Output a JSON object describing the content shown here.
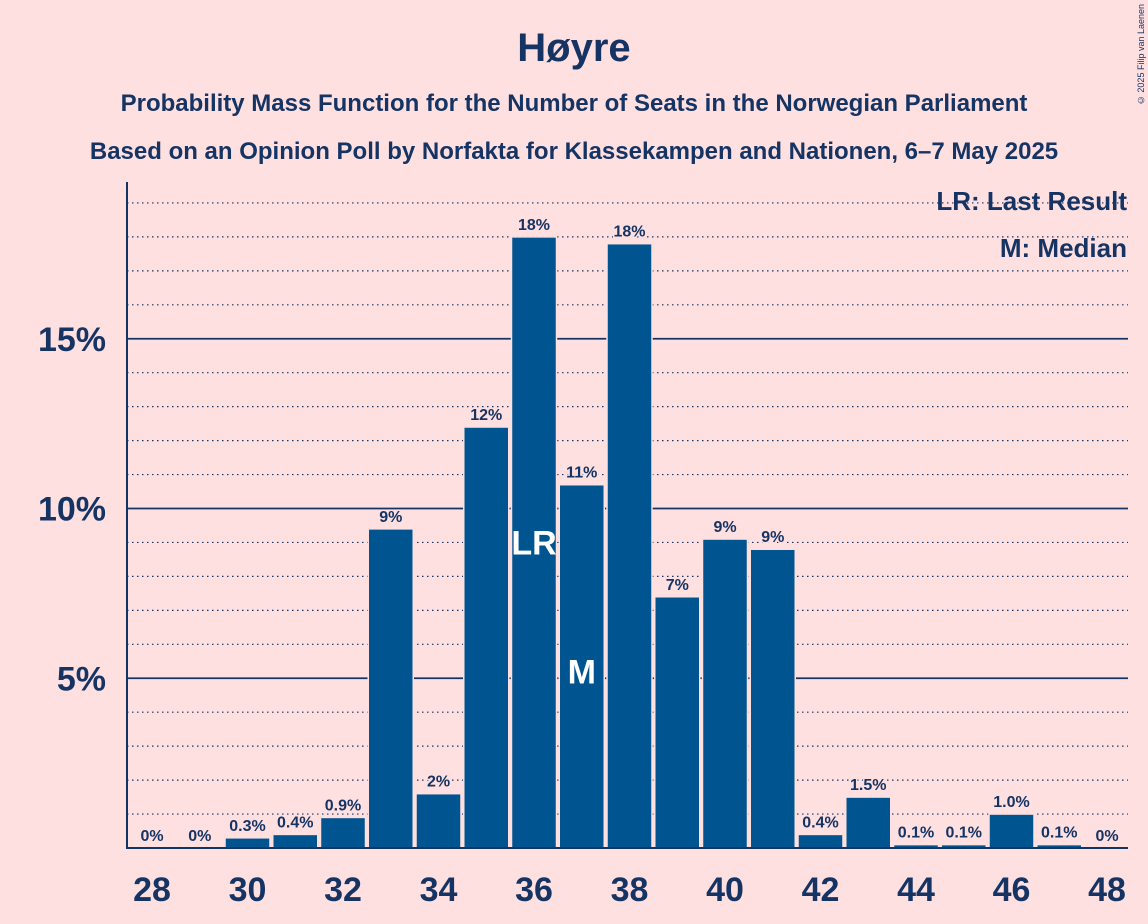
{
  "header": {
    "title": "Høyre",
    "subtitle1": "Probability Mass Function for the Number of Seats in the Norwegian Parliament",
    "subtitle2": "Based on an Opinion Poll by Norfakta for Klassekampen and Nationen, 6–7 May 2025",
    "copyright": "© 2025 Filip van Laenen"
  },
  "colors": {
    "background": "#ffe0e1",
    "bar": "#00548f",
    "text": "#153463"
  },
  "chart_data": {
    "type": "bar",
    "x": [
      28,
      29,
      30,
      31,
      32,
      33,
      34,
      35,
      36,
      37,
      38,
      39,
      40,
      41,
      42,
      43,
      44,
      45,
      46,
      47,
      48
    ],
    "values": [
      0,
      0,
      0.3,
      0.4,
      0.9,
      9.4,
      1.6,
      12.4,
      18.0,
      10.7,
      17.8,
      7.4,
      9.1,
      8.8,
      0.4,
      1.5,
      0.1,
      0.1,
      1.0,
      0.1,
      0
    ],
    "data_labels": [
      "0%",
      "0%",
      "0.3%",
      "0.4%",
      "0.9%",
      "9%",
      "2%",
      "12%",
      "18%",
      "11%",
      "18%",
      "7%",
      "9%",
      "9%",
      "0.4%",
      "1.5%",
      "0.1%",
      "0.1%",
      "1.0%",
      "0.1%",
      "0%"
    ],
    "x_ticks": [
      "28",
      "30",
      "32",
      "34",
      "36",
      "38",
      "40",
      "42",
      "44",
      "46",
      "48"
    ],
    "y_ticks": [
      {
        "value": 5,
        "label": "5%"
      },
      {
        "value": 10,
        "label": "10%"
      },
      {
        "value": 15,
        "label": "15%"
      }
    ],
    "ylim": [
      0,
      19.6
    ],
    "minor_grid_step": 1,
    "grid": true,
    "markers": [
      {
        "x": 36,
        "label": "LR",
        "value": 9.0
      },
      {
        "x": 37,
        "label": "M",
        "value": 5.2
      }
    ],
    "legend": {
      "position": "top-right",
      "entries": [
        "LR: Last Result",
        "M: Median"
      ]
    }
  }
}
